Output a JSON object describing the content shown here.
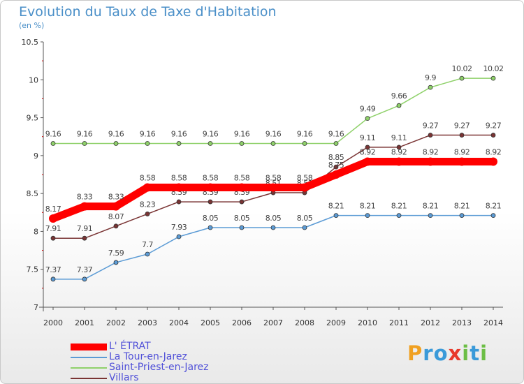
{
  "chart_data": {
    "type": "line",
    "title": "Evolution du Taux de Taxe d'Habitation",
    "unit_label": "(en %)",
    "x": [
      "2000",
      "2001",
      "2002",
      "2003",
      "2004",
      "2005",
      "2006",
      "2007",
      "2008",
      "2009",
      "2010",
      "2011",
      "2012",
      "2013",
      "2014"
    ],
    "ylim": [
      7,
      10.5
    ],
    "yticks": [
      "7",
      "7.5",
      "8",
      "8.5",
      "9",
      "9.5",
      "10",
      "10.5"
    ],
    "grid": false,
    "legend_position": "bottom-left",
    "series": [
      {
        "name": "L' ÉTRAT",
        "color": "#ff0000",
        "values": [
          8.17,
          8.33,
          8.33,
          8.58,
          8.58,
          8.58,
          8.58,
          8.58,
          8.58,
          8.75,
          8.92,
          8.92,
          8.92,
          8.92,
          8.92
        ],
        "labels": [
          "8.17",
          "8.33",
          "8.33",
          "8.58",
          "8.58",
          "8.58",
          "8.58",
          "8.58",
          "8.58",
          "8.75",
          "8.92",
          "8.92",
          "8.92",
          "8.92",
          "8.92"
        ]
      },
      {
        "name": "La Tour-en-Jarez",
        "color": "#5b9bd5",
        "values": [
          7.37,
          7.37,
          7.59,
          7.7,
          7.93,
          8.05,
          8.05,
          8.05,
          8.05,
          8.21,
          8.21,
          8.21,
          8.21,
          8.21,
          8.21
        ],
        "labels": [
          "7.37",
          "7.37",
          "7.59",
          "7.7",
          "7.93",
          "8.05",
          "8.05",
          "8.05",
          "8.05",
          "8.21",
          "8.21",
          "8.21",
          "8.21",
          "8.21",
          "8.21"
        ]
      },
      {
        "name": "Saint-Priest-en-Jarez",
        "color": "#8fd16a",
        "values": [
          9.16,
          9.16,
          9.16,
          9.16,
          9.16,
          9.16,
          9.16,
          9.16,
          9.16,
          9.16,
          9.49,
          9.66,
          9.9,
          10.02,
          10.02
        ],
        "labels": [
          "9.16",
          "9.16",
          "9.16",
          "9.16",
          "9.16",
          "9.16",
          "9.16",
          "9.16",
          "9.16",
          "9.16",
          "9.49",
          "9.66",
          "9.9",
          "10.02",
          "10.02"
        ]
      },
      {
        "name": "Villars",
        "color": "#7a3434",
        "values": [
          7.91,
          7.91,
          8.07,
          8.23,
          8.39,
          8.39,
          8.39,
          8.51,
          8.51,
          8.85,
          9.11,
          9.11,
          9.27,
          9.27,
          9.27
        ],
        "labels": [
          "7.91",
          "7.91",
          "8.07",
          "8.23",
          "8.39",
          "8.39",
          "8.39",
          "8.51",
          "8.51",
          "8.85",
          "9.11",
          "9.11",
          "9.27",
          "9.27",
          "9.27"
        ]
      }
    ]
  },
  "brand": {
    "letters": [
      {
        "ch": "P",
        "color": "#f0a020"
      },
      {
        "ch": "r",
        "color": "#3a9ad9"
      },
      {
        "ch": "o",
        "color": "#3a9ad9"
      },
      {
        "ch": "x",
        "color": "#e8392b"
      },
      {
        "ch": "i",
        "color": "#6cbe45"
      },
      {
        "ch": "t",
        "color": "#3a9ad9"
      },
      {
        "ch": "i",
        "color": "#6cbe45"
      }
    ]
  }
}
